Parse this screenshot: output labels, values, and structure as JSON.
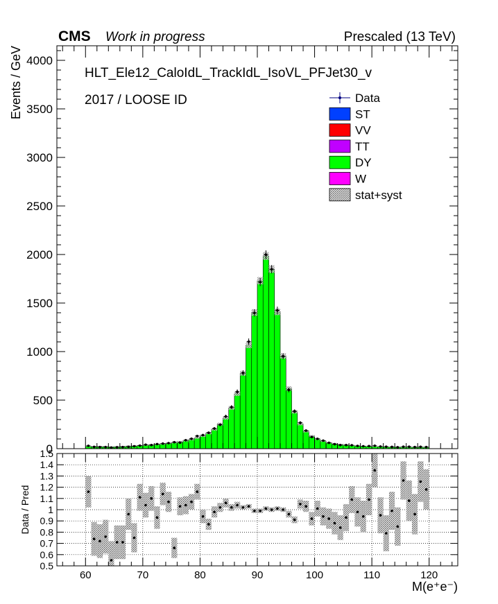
{
  "header": {
    "cms": "CMS",
    "status": "Work in progress",
    "energy": "Prescaled (13 TeV)"
  },
  "labels": {
    "trigger": "HLT_Ele12_CaloIdL_TrackIdL_IsoVL_PFJet30_v",
    "selection": "2017 / LOOSE ID"
  },
  "legend": [
    {
      "name": "Data",
      "kind": "data",
      "color": "#000080"
    },
    {
      "name": "ST",
      "kind": "box",
      "color": "#0040ff"
    },
    {
      "name": "VV",
      "kind": "box",
      "color": "#ff0000"
    },
    {
      "name": "TT",
      "kind": "box",
      "color": "#c000ff"
    },
    {
      "name": "DY",
      "kind": "box",
      "color": "#00ff00"
    },
    {
      "name": "W",
      "kind": "box",
      "color": "#ff00ff"
    },
    {
      "name": "stat+syst",
      "kind": "hatch",
      "color": "#888888"
    }
  ],
  "chart_data": [
    {
      "type": "bar",
      "ylabel": "Events / GeV",
      "xlim": [
        55,
        125
      ],
      "ylim": [
        0,
        4150
      ],
      "yticks": [
        0,
        500,
        1000,
        1500,
        2000,
        2500,
        3000,
        3500,
        4000
      ],
      "bin_edges_start": 60,
      "bin_width": 1,
      "series": [
        {
          "name": "DY",
          "color": "#00ff00",
          "values": [
            25,
            24,
            23,
            22,
            20,
            21,
            24,
            27,
            30,
            33,
            36,
            40,
            45,
            50,
            56,
            63,
            72,
            82,
            95,
            112,
            132,
            160,
            200,
            253,
            317,
            420,
            565,
            777,
            1065,
            1403,
            1730,
            1985,
            1850,
            1410,
            955,
            620,
            380,
            255,
            180,
            130,
            100,
            78,
            62,
            52,
            44,
            38,
            33,
            29,
            26,
            24,
            22,
            20,
            19,
            18,
            17,
            16,
            16,
            15,
            15,
            14
          ]
        },
        {
          "name": "Data",
          "color": "#000080",
          "kind": "data",
          "values": [
            29,
            18,
            17,
            17,
            11,
            15,
            17,
            19,
            25,
            31,
            41,
            37,
            47,
            52,
            57,
            67,
            62,
            87,
            102,
            130,
            140,
            164,
            208,
            246,
            332,
            428,
            586,
            780,
            1102,
            1398,
            1716,
            1998,
            1848,
            1425,
            951,
            605,
            385,
            267,
            186,
            120,
            101,
            83,
            60,
            46,
            37,
            37,
            35,
            28,
            25,
            26,
            30,
            22,
            20,
            18,
            15,
            20,
            20,
            17,
            19,
            17
          ]
        }
      ]
    },
    {
      "type": "scatter",
      "ylabel": "Data / Pred",
      "xlabel": "M(e⁺e⁻)",
      "xlim": [
        55,
        125
      ],
      "ylim": [
        0.5,
        1.5
      ],
      "yticks": [
        0.5,
        0.6,
        0.7,
        0.8,
        0.9,
        1,
        1.1,
        1.2,
        1.3,
        1.4,
        1.5
      ],
      "xticks": [
        60,
        70,
        80,
        90,
        100,
        110,
        120
      ],
      "x": [
        60.5,
        61.5,
        62.5,
        63.5,
        64.5,
        65.5,
        66.5,
        67.5,
        68.5,
        69.5,
        70.5,
        71.5,
        72.5,
        73.5,
        74.5,
        75.5,
        76.5,
        77.5,
        78.5,
        79.5,
        80.5,
        81.5,
        82.5,
        83.5,
        84.5,
        85.5,
        86.5,
        87.5,
        88.5,
        89.5,
        90.5,
        91.5,
        92.5,
        93.5,
        94.5,
        95.5,
        96.5,
        97.5,
        98.5,
        99.5,
        100.5,
        101.5,
        102.5,
        103.5,
        104.5,
        105.5,
        106.5,
        107.5,
        108.5,
        109.5,
        110.5,
        111.5,
        112.5,
        113.5,
        114.5,
        115.5,
        116.5,
        117.5,
        118.5,
        119.5
      ],
      "y": [
        1.16,
        0.74,
        0.72,
        0.76,
        0.55,
        0.71,
        0.71,
        0.96,
        0.75,
        1.11,
        1.04,
        1.1,
        0.93,
        1.14,
        1.07,
        0.66,
        1.03,
        1.04,
        1.07,
        1.16,
        0.94,
        0.87,
        0.98,
        1.02,
        1.06,
        1.02,
        1.04,
        1.02,
        1.03,
        0.99,
        0.99,
        1.01,
        1.0,
        1.01,
        1.0,
        0.96,
        0.91,
        1.05,
        1.03,
        0.92,
        1.01,
        0.94,
        0.92,
        0.88,
        0.84,
        0.93,
        1.09,
        0.98,
        0.94,
        1.09,
        1.35,
        0.95,
        0.79,
        0.99,
        0.85,
        1.26,
        1.08,
        0.96,
        1.25,
        1.18
      ],
      "err": [
        0.14,
        0.15,
        0.15,
        0.15,
        0.17,
        0.15,
        0.15,
        0.14,
        0.13,
        0.12,
        0.11,
        0.11,
        0.1,
        0.1,
        0.09,
        0.09,
        0.08,
        0.08,
        0.07,
        0.07,
        0.06,
        0.05,
        0.05,
        0.04,
        0.04,
        0.03,
        0.03,
        0.02,
        0.02,
        0.02,
        0.02,
        0.02,
        0.02,
        0.02,
        0.02,
        0.03,
        0.03,
        0.04,
        0.05,
        0.06,
        0.07,
        0.08,
        0.09,
        0.1,
        0.11,
        0.12,
        0.12,
        0.13,
        0.14,
        0.14,
        0.15,
        0.16,
        0.16,
        0.17,
        0.17,
        0.17,
        0.18,
        0.18,
        0.18,
        0.18
      ]
    }
  ]
}
